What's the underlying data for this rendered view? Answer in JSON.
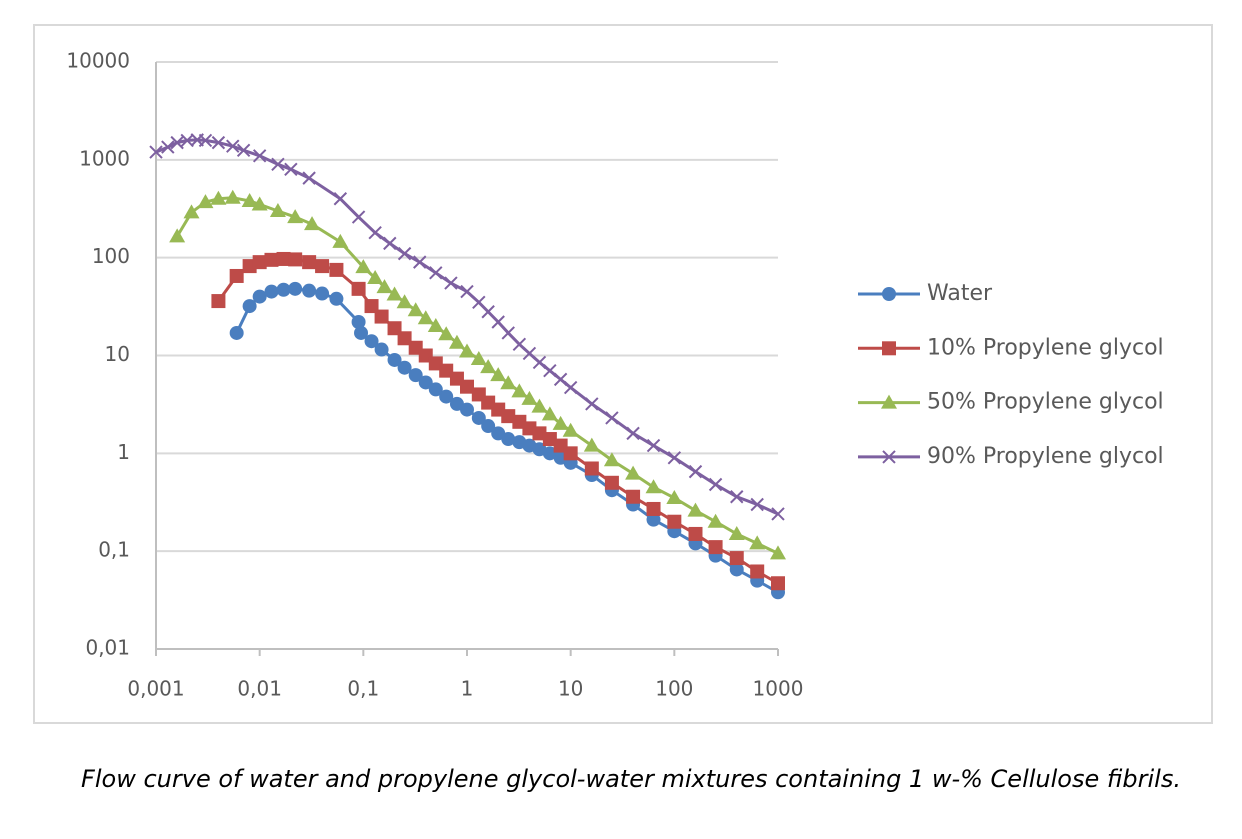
{
  "chart_data": {
    "type": "line",
    "caption": "Flow curve of water and propylene glycol-water mixtures containing 1 w-% Cellulose fibrils.",
    "xlog": true,
    "ylog": true,
    "grid": true,
    "legend": "right",
    "xlim": [
      0.001,
      1000
    ],
    "xticks": [
      {
        "value": 0.001,
        "label": "0,001"
      },
      {
        "value": 0.01,
        "label": "0,01"
      },
      {
        "value": 0.1,
        "label": "0,1"
      },
      1,
      10,
      100,
      1000
    ],
    "ylim": [
      0.01,
      10000
    ],
    "yticks": [
      {
        "value": 0.01,
        "label": "0,01"
      },
      {
        "value": 0.1,
        "label": "0,1"
      },
      1,
      10,
      100,
      1000,
      10000
    ],
    "series": [
      {
        "name": "Water",
        "color": "#4a7ebf",
        "marker": "circle",
        "x": [
          0.006,
          0.008,
          0.01,
          0.013,
          0.017,
          0.022,
          0.03,
          0.04,
          0.055,
          0.09,
          0.095,
          0.12,
          0.15,
          0.2,
          0.25,
          0.32,
          0.4,
          0.5,
          0.63,
          0.8,
          1,
          1.3,
          1.6,
          2,
          2.5,
          3.2,
          4,
          5,
          6.3,
          8,
          10,
          16,
          25,
          40,
          63,
          100,
          160,
          250,
          400,
          630,
          1000
        ],
        "values": [
          17,
          32,
          40,
          45,
          47,
          48,
          46,
          43,
          38,
          22,
          17,
          14,
          11.5,
          9,
          7.5,
          6.3,
          5.3,
          4.5,
          3.8,
          3.2,
          2.8,
          2.3,
          1.9,
          1.6,
          1.4,
          1.3,
          1.2,
          1.1,
          1.0,
          0.9,
          0.8,
          0.6,
          0.42,
          0.3,
          0.21,
          0.16,
          0.12,
          0.09,
          0.065,
          0.05,
          0.038
        ]
      },
      {
        "name": "10% Propylene glycol",
        "color": "#be4b48",
        "marker": "square",
        "x": [
          0.004,
          0.006,
          0.008,
          0.01,
          0.013,
          0.017,
          0.022,
          0.03,
          0.04,
          0.055,
          0.09,
          0.12,
          0.15,
          0.2,
          0.25,
          0.32,
          0.4,
          0.5,
          0.63,
          0.8,
          1,
          1.3,
          1.6,
          2,
          2.5,
          3.2,
          4,
          5,
          6.3,
          8,
          10,
          16,
          25,
          40,
          63,
          100,
          160,
          250,
          400,
          630,
          1000
        ],
        "values": [
          36,
          65,
          82,
          90,
          95,
          97,
          96,
          90,
          82,
          75,
          48,
          32,
          25,
          19,
          15,
          12,
          10,
          8.3,
          7,
          5.8,
          4.8,
          4,
          3.3,
          2.8,
          2.4,
          2.1,
          1.8,
          1.6,
          1.4,
          1.2,
          1.0,
          0.7,
          0.5,
          0.36,
          0.27,
          0.2,
          0.15,
          0.11,
          0.085,
          0.062,
          0.047
        ]
      },
      {
        "name": "50% Propylene glycol",
        "color": "#98b954",
        "marker": "triangle",
        "x": [
          0.0016,
          0.0022,
          0.003,
          0.004,
          0.0055,
          0.008,
          0.01,
          0.015,
          0.022,
          0.032,
          0.06,
          0.1,
          0.13,
          0.16,
          0.2,
          0.25,
          0.32,
          0.4,
          0.5,
          0.63,
          0.8,
          1,
          1.3,
          1.6,
          2,
          2.5,
          3.2,
          4,
          5,
          6.3,
          8,
          10,
          16,
          25,
          40,
          63,
          100,
          160,
          250,
          400,
          630,
          1000
        ],
        "values": [
          165,
          290,
          370,
          400,
          410,
          380,
          350,
          300,
          260,
          220,
          145,
          80,
          62,
          50,
          42,
          35,
          29,
          24,
          20,
          16.5,
          13.5,
          11,
          9.2,
          7.6,
          6.3,
          5.2,
          4.3,
          3.6,
          3,
          2.5,
          2.0,
          1.7,
          1.2,
          0.85,
          0.62,
          0.45,
          0.35,
          0.26,
          0.2,
          0.15,
          0.12,
          0.095
        ]
      },
      {
        "name": "90% Propylene glycol",
        "color": "#7d60a0",
        "marker": "x",
        "x": [
          0.001,
          0.0013,
          0.0016,
          0.002,
          0.0025,
          0.003,
          0.004,
          0.0055,
          0.007,
          0.01,
          0.015,
          0.02,
          0.03,
          0.06,
          0.09,
          0.13,
          0.18,
          0.25,
          0.35,
          0.5,
          0.7,
          1,
          1.3,
          1.6,
          2,
          2.5,
          3.2,
          4,
          5,
          6.3,
          8,
          10,
          16,
          25,
          40,
          63,
          100,
          160,
          250,
          400,
          630,
          1000
        ],
        "values": [
          1200,
          1350,
          1500,
          1580,
          1600,
          1580,
          1500,
          1380,
          1250,
          1100,
          900,
          800,
          650,
          400,
          260,
          180,
          140,
          110,
          90,
          70,
          55,
          45,
          35,
          28,
          22,
          17,
          13,
          10.5,
          8.5,
          7,
          5.7,
          4.7,
          3.2,
          2.3,
          1.6,
          1.2,
          0.9,
          0.65,
          0.48,
          0.36,
          0.3,
          0.24
        ]
      }
    ]
  }
}
